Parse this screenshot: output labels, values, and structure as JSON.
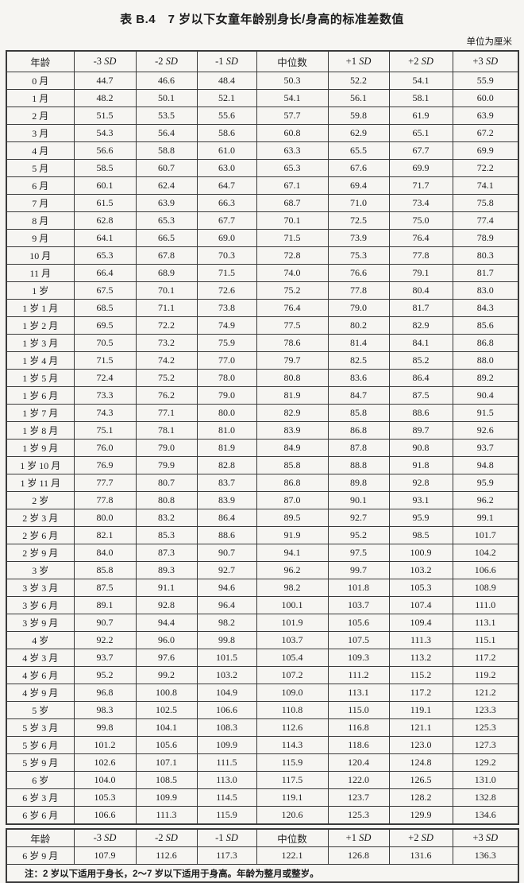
{
  "page": {
    "title": "表 B.4　7 岁以下女童年龄别身长/身高的标准差数值",
    "unit_note": "单位为厘米"
  },
  "main_table": {
    "headers": [
      "年龄",
      "-3 SD",
      "-2 SD",
      "-1 SD",
      "中位数",
      "+1 SD",
      "+2 SD",
      "+3 SD"
    ],
    "rows": [
      [
        "0 月",
        "44.7",
        "46.6",
        "48.4",
        "50.3",
        "52.2",
        "54.1",
        "55.9"
      ],
      [
        "1 月",
        "48.2",
        "50.1",
        "52.1",
        "54.1",
        "56.1",
        "58.1",
        "60.0"
      ],
      [
        "2 月",
        "51.5",
        "53.5",
        "55.6",
        "57.7",
        "59.8",
        "61.9",
        "63.9"
      ],
      [
        "3 月",
        "54.3",
        "56.4",
        "58.6",
        "60.8",
        "62.9",
        "65.1",
        "67.2"
      ],
      [
        "4 月",
        "56.6",
        "58.8",
        "61.0",
        "63.3",
        "65.5",
        "67.7",
        "69.9"
      ],
      [
        "5 月",
        "58.5",
        "60.7",
        "63.0",
        "65.3",
        "67.6",
        "69.9",
        "72.2"
      ],
      [
        "6 月",
        "60.1",
        "62.4",
        "64.7",
        "67.1",
        "69.4",
        "71.7",
        "74.1"
      ],
      [
        "7 月",
        "61.5",
        "63.9",
        "66.3",
        "68.7",
        "71.0",
        "73.4",
        "75.8"
      ],
      [
        "8 月",
        "62.8",
        "65.3",
        "67.7",
        "70.1",
        "72.5",
        "75.0",
        "77.4"
      ],
      [
        "9 月",
        "64.1",
        "66.5",
        "69.0",
        "71.5",
        "73.9",
        "76.4",
        "78.9"
      ],
      [
        "10 月",
        "65.3",
        "67.8",
        "70.3",
        "72.8",
        "75.3",
        "77.8",
        "80.3"
      ],
      [
        "11 月",
        "66.4",
        "68.9",
        "71.5",
        "74.0",
        "76.6",
        "79.1",
        "81.7"
      ],
      [
        "1 岁",
        "67.5",
        "70.1",
        "72.6",
        "75.2",
        "77.8",
        "80.4",
        "83.0"
      ],
      [
        "1 岁 1 月",
        "68.5",
        "71.1",
        "73.8",
        "76.4",
        "79.0",
        "81.7",
        "84.3"
      ],
      [
        "1 岁 2 月",
        "69.5",
        "72.2",
        "74.9",
        "77.5",
        "80.2",
        "82.9",
        "85.6"
      ],
      [
        "1 岁 3 月",
        "70.5",
        "73.2",
        "75.9",
        "78.6",
        "81.4",
        "84.1",
        "86.8"
      ],
      [
        "1 岁 4 月",
        "71.5",
        "74.2",
        "77.0",
        "79.7",
        "82.5",
        "85.2",
        "88.0"
      ],
      [
        "1 岁 5 月",
        "72.4",
        "75.2",
        "78.0",
        "80.8",
        "83.6",
        "86.4",
        "89.2"
      ],
      [
        "1 岁 6 月",
        "73.3",
        "76.2",
        "79.0",
        "81.9",
        "84.7",
        "87.5",
        "90.4"
      ],
      [
        "1 岁 7 月",
        "74.3",
        "77.1",
        "80.0",
        "82.9",
        "85.8",
        "88.6",
        "91.5"
      ],
      [
        "1 岁 8 月",
        "75.1",
        "78.1",
        "81.0",
        "83.9",
        "86.8",
        "89.7",
        "92.6"
      ],
      [
        "1 岁 9 月",
        "76.0",
        "79.0",
        "81.9",
        "84.9",
        "87.8",
        "90.8",
        "93.7"
      ],
      [
        "1 岁 10 月",
        "76.9",
        "79.9",
        "82.8",
        "85.8",
        "88.8",
        "91.8",
        "94.8"
      ],
      [
        "1 岁 11 月",
        "77.7",
        "80.7",
        "83.7",
        "86.8",
        "89.8",
        "92.8",
        "95.9"
      ],
      [
        "2 岁",
        "77.8",
        "80.8",
        "83.9",
        "87.0",
        "90.1",
        "93.1",
        "96.2"
      ],
      [
        "2 岁 3 月",
        "80.0",
        "83.2",
        "86.4",
        "89.5",
        "92.7",
        "95.9",
        "99.1"
      ],
      [
        "2 岁 6 月",
        "82.1",
        "85.3",
        "88.6",
        "91.9",
        "95.2",
        "98.5",
        "101.7"
      ],
      [
        "2 岁 9 月",
        "84.0",
        "87.3",
        "90.7",
        "94.1",
        "97.5",
        "100.9",
        "104.2"
      ],
      [
        "3 岁",
        "85.8",
        "89.3",
        "92.7",
        "96.2",
        "99.7",
        "103.2",
        "106.6"
      ],
      [
        "3 岁 3 月",
        "87.5",
        "91.1",
        "94.6",
        "98.2",
        "101.8",
        "105.3",
        "108.9"
      ],
      [
        "3 岁 6 月",
        "89.1",
        "92.8",
        "96.4",
        "100.1",
        "103.7",
        "107.4",
        "111.0"
      ],
      [
        "3 岁 9 月",
        "90.7",
        "94.4",
        "98.2",
        "101.9",
        "105.6",
        "109.4",
        "113.1"
      ],
      [
        "4 岁",
        "92.2",
        "96.0",
        "99.8",
        "103.7",
        "107.5",
        "111.3",
        "115.1"
      ],
      [
        "4 岁 3 月",
        "93.7",
        "97.6",
        "101.5",
        "105.4",
        "109.3",
        "113.2",
        "117.2"
      ],
      [
        "4 岁 6 月",
        "95.2",
        "99.2",
        "103.2",
        "107.2",
        "111.2",
        "115.2",
        "119.2"
      ],
      [
        "4 岁 9 月",
        "96.8",
        "100.8",
        "104.9",
        "109.0",
        "113.1",
        "117.2",
        "121.2"
      ],
      [
        "5 岁",
        "98.3",
        "102.5",
        "106.6",
        "110.8",
        "115.0",
        "119.1",
        "123.3"
      ],
      [
        "5 岁 3 月",
        "99.8",
        "104.1",
        "108.3",
        "112.6",
        "116.8",
        "121.1",
        "125.3"
      ],
      [
        "5 岁 6 月",
        "101.2",
        "105.6",
        "109.9",
        "114.3",
        "118.6",
        "123.0",
        "127.3"
      ],
      [
        "5 岁 9 月",
        "102.6",
        "107.1",
        "111.5",
        "115.9",
        "120.4",
        "124.8",
        "129.2"
      ],
      [
        "6 岁",
        "104.0",
        "108.5",
        "113.0",
        "117.5",
        "122.0",
        "126.5",
        "131.0"
      ],
      [
        "6 岁 3 月",
        "105.3",
        "109.9",
        "114.5",
        "119.1",
        "123.7",
        "128.2",
        "132.8"
      ],
      [
        "6 岁 6 月",
        "106.6",
        "111.3",
        "115.9",
        "120.6",
        "125.3",
        "129.9",
        "134.6"
      ]
    ]
  },
  "continued_table": {
    "headers": [
      "年龄",
      "-3 SD",
      "-2 SD",
      "-1 SD",
      "中位数",
      "+1 SD",
      "+2 SD",
      "+3 SD"
    ],
    "rows": [
      [
        "6 岁 9 月",
        "107.9",
        "112.6",
        "117.3",
        "122.1",
        "126.8",
        "131.6",
        "136.3"
      ]
    ],
    "note": {
      "prefix": "注：",
      "text": "2 岁以下适用于身长，2～7 岁以下适用于身高。年龄为整月或整岁。"
    }
  }
}
